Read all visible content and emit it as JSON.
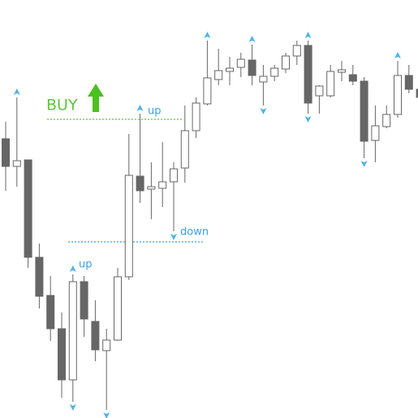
{
  "chart_data": {
    "type": "candlestick",
    "ylim": [
      0,
      515
    ],
    "bull_color": "#ffffff",
    "bear_color": "#666666",
    "wick_color": "#666666",
    "series": [
      {
        "open": [
          344,
          310,
          318,
          198,
          151,
          110,
          47,
          168,
          119,
          83,
          96,
          174,
          298,
          282,
          283,
          291,
          308,
          354,
          387,
          417,
          427,
          432,
          441,
          414,
          421,
          430,
          446,
          459,
          397,
          397,
          426,
          423,
          415,
          342,
          359,
          374,
          422,
          405
        ],
        "high": [
          365,
          395,
          318,
          215,
          175,
          130,
          177,
          175,
          145,
          110,
          185,
          350,
          375,
          315,
          340,
          315,
          385,
          395,
          465,
          455,
          445,
          450,
          460,
          435,
          435,
          450,
          465,
          465,
          410,
          435,
          440,
          435,
          420,
          385,
          385,
          440,
          435,
          410
        ],
        "low": [
          280,
          285,
          185,
          135,
          95,
          25,
          20,
          100,
          70,
          10,
          95,
          170,
          265,
          245,
          260,
          230,
          290,
          345,
          385,
          410,
          410,
          420,
          410,
          385,
          415,
          425,
          435,
          375,
          375,
          395,
          415,
          410,
          320,
          315,
          357,
          370,
          400,
          390
        ],
        "close": [
          310,
          317,
          198,
          150,
          110,
          47,
          168,
          122,
          84,
          96,
          174,
          299,
          280,
          285,
          291,
          307,
          354,
          388,
          419,
          428,
          431,
          442,
          422,
          421,
          431,
          446,
          459,
          388,
          409,
          427,
          429,
          415,
          341,
          360,
          374,
          422,
          405,
          395
        ]
      }
    ],
    "fractal_color": "#4fb3e8",
    "fractals_up": [
      1,
      6,
      12,
      18,
      22,
      27,
      35
    ],
    "fractals_down": [
      6,
      9,
      15,
      23,
      27,
      32
    ],
    "levels": [
      {
        "value": 368,
        "color": "#5cc83a"
      },
      {
        "value": 217,
        "color": "#3aa0e0"
      }
    ],
    "annotations": [
      {
        "text": "BUY",
        "color": "#5cc83a"
      },
      {
        "text": "up",
        "color": "#3aa0e0"
      },
      {
        "text": "up",
        "color": "#3aa0e0"
      },
      {
        "text": "down",
        "color": "#3aa0e0"
      }
    ]
  }
}
